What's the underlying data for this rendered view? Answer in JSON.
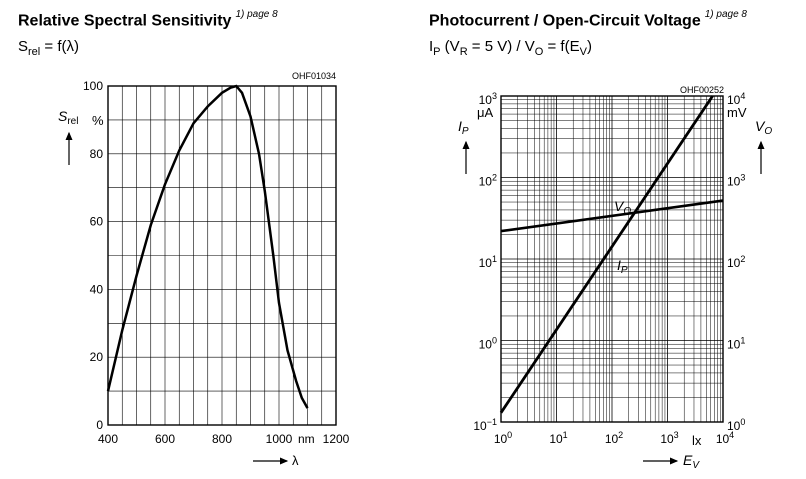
{
  "left": {
    "title": "Relative Spectral Sensitivity",
    "footnote": "1) page 8",
    "subtitle_sym": "S",
    "subtitle_sub": "rel",
    "subtitle_rest": " = f(λ)",
    "code": "OHF01034",
    "ylabel_sym": "S",
    "ylabel_sub": "rel",
    "y_unit": "%",
    "x_unit": "nm",
    "xlabel": "λ",
    "x_ticks": [
      "400",
      "600",
      "800",
      "1000",
      "1200"
    ],
    "y_ticks": [
      "0",
      "20",
      "40",
      "60",
      "80",
      "100"
    ]
  },
  "right": {
    "title": "Photocurrent / Open-Circuit Voltage",
    "footnote": "1) page 8",
    "subtitle": "I_P (V_R = 5 V) / V_O = f(E_V)",
    "code": "OHF00252",
    "ylabel_left": "I_P",
    "y_unit_left": "μA",
    "ylabel_right": "V_O",
    "y_unit_right": "mV",
    "x_unit": "lx",
    "xlabel": "E_V",
    "label_vo": "V_O",
    "label_ip": "I_P"
  },
  "chart_data": [
    {
      "type": "line",
      "title": "Relative Spectral Sensitivity",
      "xlabel": "λ",
      "x_unit": "nm",
      "ylabel": "S_rel",
      "y_unit": "%",
      "xlim": [
        400,
        1200
      ],
      "ylim": [
        0,
        100
      ],
      "grid": true,
      "series": [
        {
          "name": "S_rel",
          "x": [
            400,
            450,
            500,
            550,
            600,
            650,
            700,
            750,
            800,
            830,
            850,
            870,
            900,
            930,
            950,
            980,
            1000,
            1030,
            1060,
            1080,
            1100
          ],
          "y": [
            10,
            28,
            44,
            59,
            71,
            81,
            89,
            94,
            98,
            99.5,
            100,
            98,
            91,
            80,
            69,
            50,
            36,
            22,
            13,
            8,
            5
          ]
        }
      ]
    },
    {
      "type": "line",
      "title": "Photocurrent / Open-Circuit Voltage",
      "xlabel": "E_V",
      "x_unit": "lx",
      "x_scale": "log",
      "xlim": [
        1,
        10000
      ],
      "x_ticks": [
        "10^0",
        "10^1",
        "10^2",
        "10^3",
        "10^4"
      ],
      "ylabel_left": "I_P",
      "y_unit_left": "μA",
      "y_scale_left": "log",
      "ylim_left": [
        0.1,
        1000
      ],
      "y_ticks_left": [
        "10^-1",
        "10^0",
        "10^1",
        "10^2",
        "10^3"
      ],
      "ylabel_right": "V_O",
      "y_unit_right": "mV",
      "y_scale_right": "log",
      "ylim_right": [
        1,
        10000
      ],
      "y_ticks_right": [
        "10^0",
        "10^1",
        "10^2",
        "10^3",
        "10^4"
      ],
      "grid": true,
      "series": [
        {
          "name": "I_P",
          "axis": "left",
          "x": [
            1,
            6500
          ],
          "y": [
            0.13,
            1000
          ]
        },
        {
          "name": "V_O",
          "axis": "right",
          "x": [
            1,
            10000
          ],
          "y": [
            220,
            520
          ]
        }
      ]
    }
  ]
}
